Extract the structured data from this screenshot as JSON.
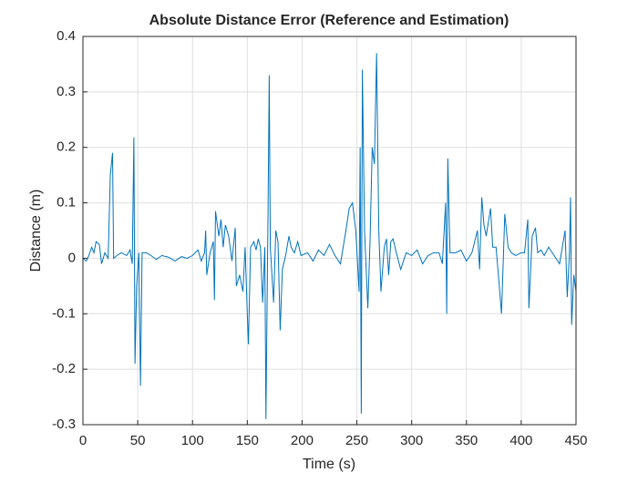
{
  "chart_data": {
    "type": "line",
    "title": "Absolute Distance Error (Reference and Estimation)",
    "xlabel": "Time (s)",
    "ylabel": "Distance (m)",
    "color": "#0072bd",
    "grid": true,
    "xlim": [
      0,
      450
    ],
    "xticks": [
      0,
      50,
      100,
      150,
      200,
      250,
      300,
      350,
      400,
      450
    ],
    "ylim": [
      -0.3,
      0.4
    ],
    "yticks": [
      -0.3,
      -0.2,
      -0.1,
      0,
      0.1,
      0.2,
      0.3,
      0.4
    ],
    "x": [
      0,
      3,
      5,
      8,
      10,
      12,
      15,
      17,
      20,
      23,
      25,
      27,
      28,
      31,
      35,
      40,
      43,
      45,
      46.5,
      47.5,
      49,
      51,
      52.5,
      54,
      58,
      62,
      67,
      72,
      78,
      84,
      90,
      95,
      100,
      105,
      108,
      111,
      112,
      113,
      116,
      119,
      120,
      121,
      124,
      126,
      128,
      130,
      133,
      136,
      139,
      140,
      143,
      146,
      148,
      150,
      151,
      153,
      156,
      158,
      160,
      162,
      164,
      166,
      167,
      169,
      170,
      171,
      174,
      176,
      178,
      180,
      182,
      185,
      188,
      190,
      193,
      196,
      199,
      205,
      210,
      215,
      220,
      225,
      230,
      235,
      240,
      243,
      246,
      249,
      252,
      253,
      254,
      255,
      257,
      260,
      262,
      264,
      266,
      268,
      270,
      272,
      275,
      277,
      279,
      281,
      283,
      286,
      290,
      295,
      300,
      305,
      310,
      315,
      320,
      325,
      328,
      331,
      332,
      333,
      335,
      340,
      345,
      350,
      355,
      360,
      362,
      364,
      366,
      368,
      372,
      374,
      377,
      380,
      382,
      385,
      388,
      391,
      395,
      400,
      403,
      406,
      407,
      410,
      413,
      415,
      418,
      421,
      425,
      430,
      435,
      440,
      442,
      444,
      445,
      446,
      448,
      450
    ],
    "values": [
      0,
      -0.005,
      0.003,
      0.02,
      0.01,
      0.03,
      0.025,
      -0.01,
      0.01,
      0,
      0.15,
      0.19,
      0,
      0.005,
      0.01,
      0.005,
      0.015,
      -0.01,
      0.218,
      -0.19,
      -0.05,
      0.01,
      -0.23,
      0.01,
      0.01,
      0.005,
      -0.002,
      0.005,
      0.002,
      -0.005,
      0.003,
      0,
      0.005,
      0.015,
      -0.005,
      0.01,
      0.05,
      -0.03,
      0.01,
      0.03,
      -0.075,
      0.085,
      0.04,
      0.07,
      0.02,
      0.06,
      0.04,
      -0.005,
      0.055,
      -0.05,
      -0.03,
      -0.06,
      0.02,
      -0.1,
      -0.155,
      0.02,
      0.03,
      0.015,
      0.035,
      0.02,
      -0.08,
      0.02,
      -0.29,
      0.1,
      0.33,
      0.02,
      -0.08,
      0.05,
      0.03,
      -0.13,
      -0.02,
      0.005,
      0.04,
      0.02,
      0.01,
      0.03,
      0.005,
      0.01,
      -0.005,
      0.015,
      0.005,
      0.025,
      0.005,
      -0.01,
      0.05,
      0.09,
      0.1,
      0.05,
      -0.06,
      0.2,
      -0.28,
      0.34,
      0.05,
      -0.09,
      0.03,
      0.2,
      0.17,
      0.37,
      0.05,
      -0.06,
      0.02,
      0.035,
      -0.03,
      0.03,
      0.035,
      0.01,
      -0.02,
      0.01,
      0.005,
      0.015,
      -0.01,
      0.005,
      0.01,
      0.01,
      -0.01,
      0.1,
      -0.1,
      0.18,
      0.01,
      0.01,
      0.015,
      -0.005,
      0.01,
      0.05,
      -0.02,
      0.11,
      0.06,
      0.04,
      0.09,
      0.02,
      0.02,
      -0.05,
      -0.1,
      0.08,
      0.02,
      0.01,
      0.005,
      0.01,
      0.01,
      0.07,
      -0.09,
      0.04,
      0.055,
      0.01,
      0.015,
      0.005,
      0.02,
      0.005,
      -0.01,
      0.05,
      -0.07,
      0.01,
      0.11,
      -0.12,
      -0.03,
      -0.06
    ]
  }
}
